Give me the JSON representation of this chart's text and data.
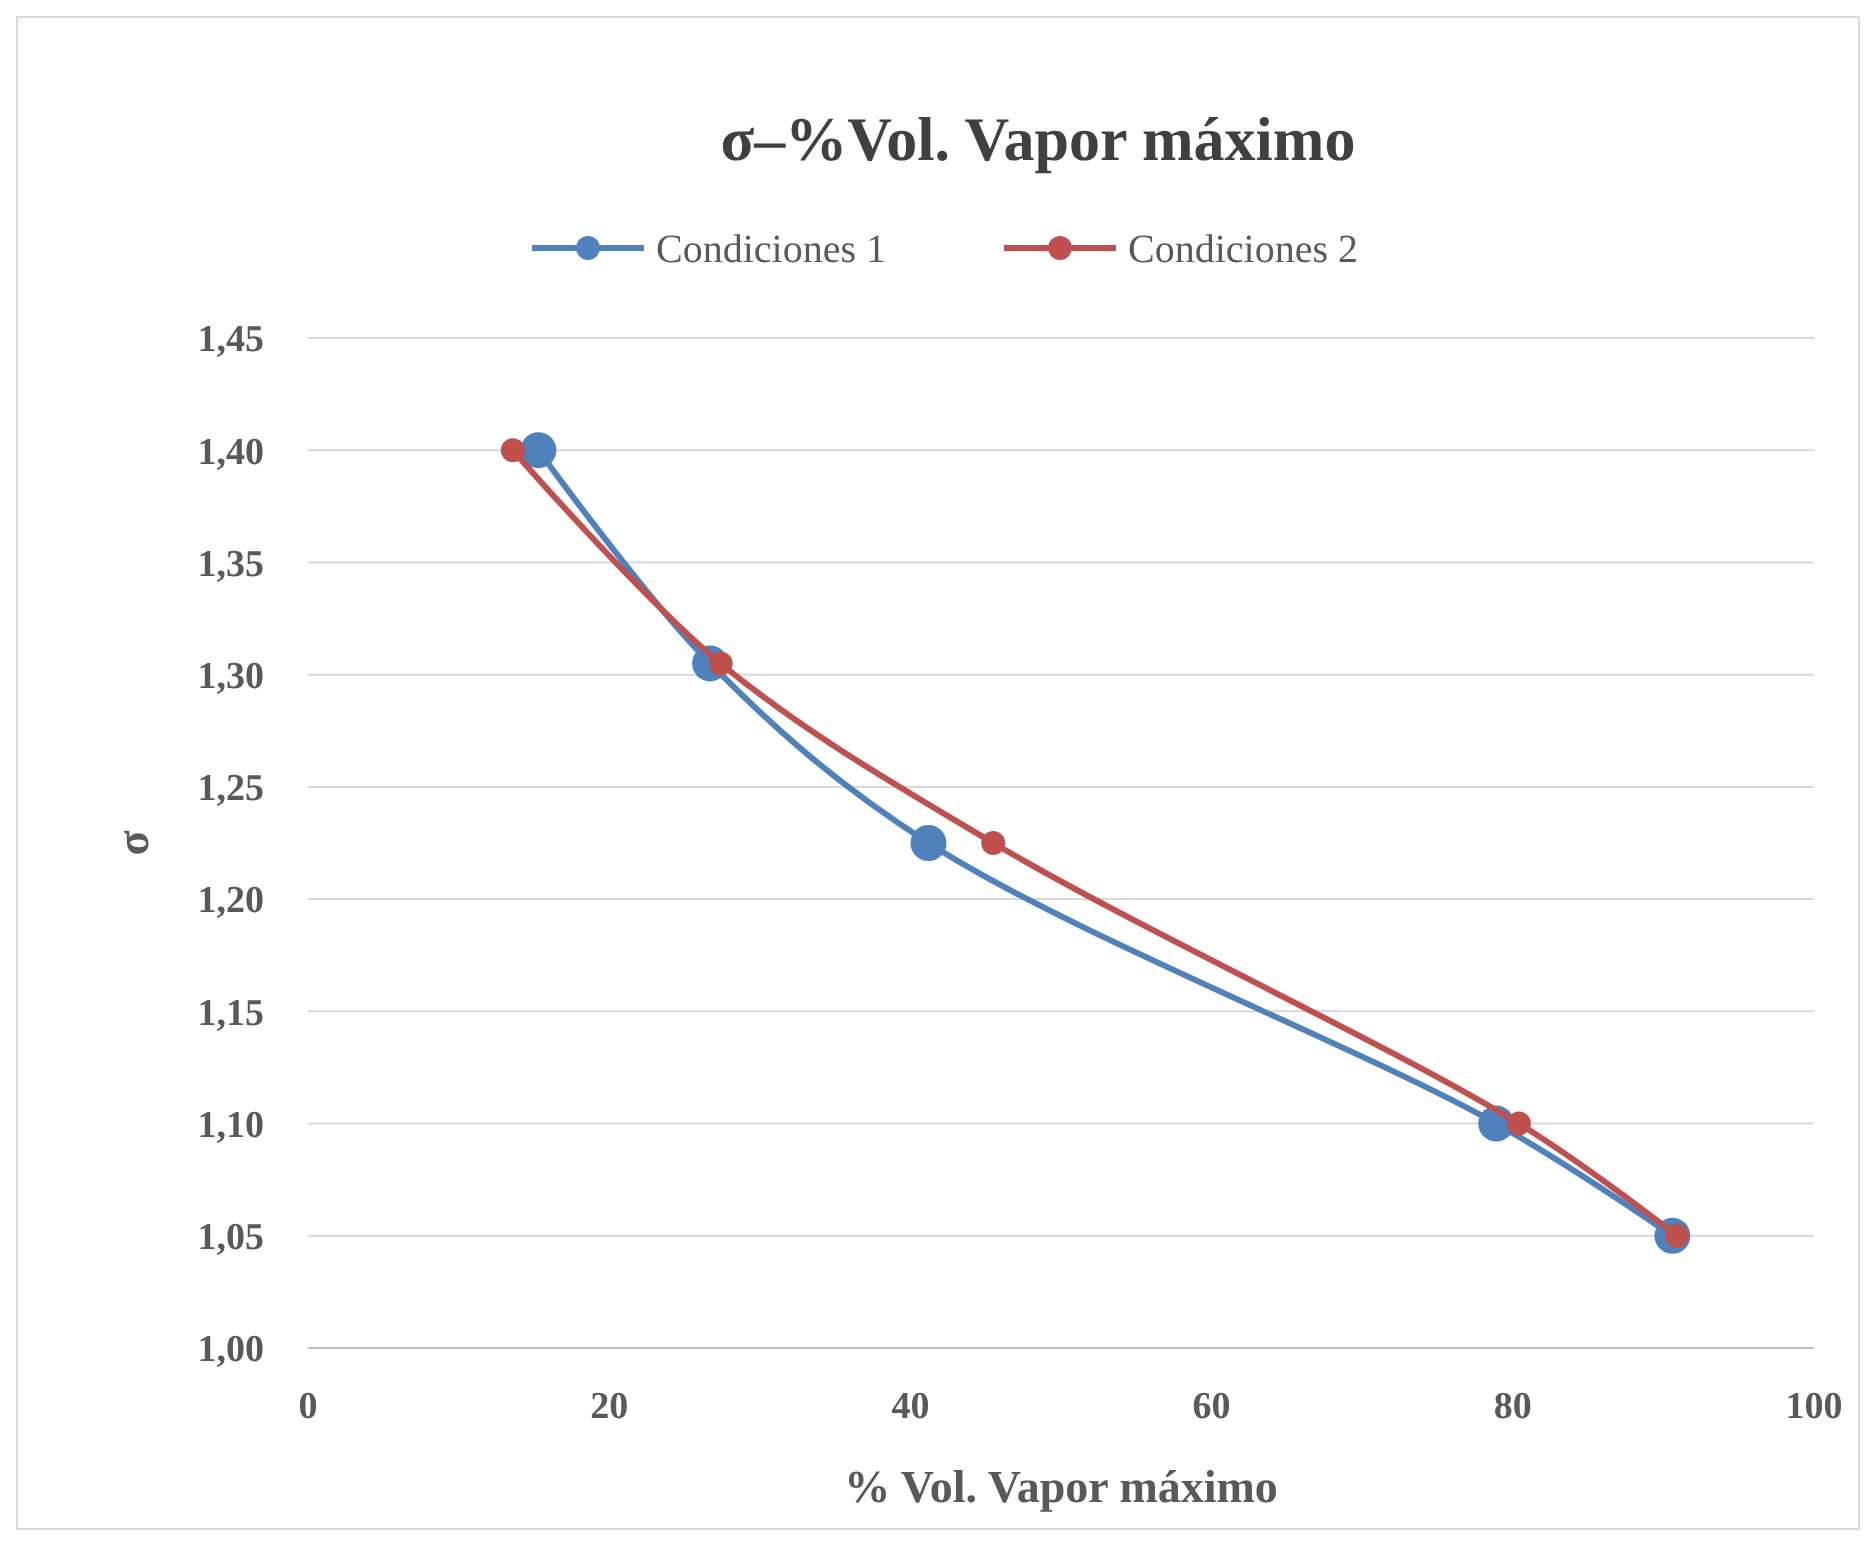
{
  "chart_data": {
    "type": "line",
    "title": "σ–%Vol. Vapor máximo",
    "xlabel": "% Vol. Vapor máximo",
    "ylabel": "σ",
    "series": [
      {
        "name": "Condiciones 1",
        "color": "#4f81bd",
        "x": [
          15.3,
          26.7,
          41.2,
          78.9,
          90.6
        ],
        "values": [
          1.4,
          1.305,
          1.225,
          1.1,
          1.05
        ]
      },
      {
        "name": "Condiciones 2",
        "color": "#c0504d",
        "x": [
          13.6,
          27.4,
          45.5,
          80.4,
          90.9
        ],
        "values": [
          1.4,
          1.305,
          1.225,
          1.1,
          1.05
        ]
      }
    ],
    "xlim": [
      0,
      100
    ],
    "xticks": [
      0,
      20,
      40,
      60,
      80,
      100
    ],
    "ylim": [
      1.0,
      1.45
    ],
    "yticks": [
      {
        "value": 1.0,
        "label": "1,00"
      },
      {
        "value": 1.05,
        "label": "1,05"
      },
      {
        "value": 1.1,
        "label": "1,10"
      },
      {
        "value": 1.15,
        "label": "1,15"
      },
      {
        "value": 1.2,
        "label": "1,20"
      },
      {
        "value": 1.25,
        "label": "1,25"
      },
      {
        "value": 1.3,
        "label": "1,30"
      },
      {
        "value": 1.35,
        "label": "1,35"
      },
      {
        "value": 1.4,
        "label": "1,40"
      },
      {
        "value": 1.45,
        "label": "1,45"
      }
    ],
    "grid": "y",
    "legend": "top",
    "marker": "circle",
    "line_style": "solid"
  }
}
